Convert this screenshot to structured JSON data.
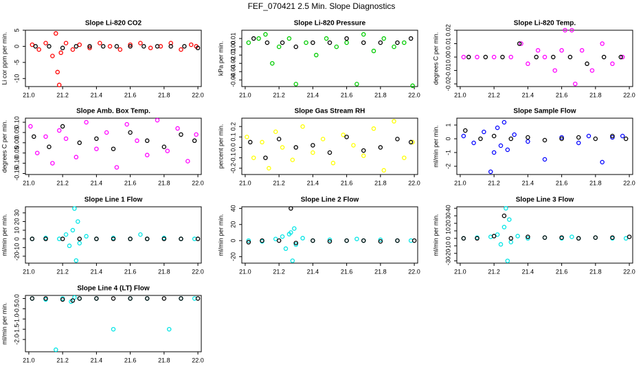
{
  "title": "FEF_070421  2.5 Min. Slope Diagnostics",
  "chart_data": [
    {
      "type": "scatter",
      "title": "Slope Li-820 CO2",
      "ylabel": "Li cor ppm per min.",
      "xlim": [
        20.98,
        22.02
      ],
      "ylim": [
        -12.5,
        5
      ],
      "xticks": [
        {
          "value": 21.0,
          "label": "21.0"
        },
        21.2,
        21.4,
        21.6,
        21.8,
        {
          "value": 22.0,
          "label": "22.0"
        }
      ],
      "yticks": [
        -10,
        -5,
        0,
        5
      ],
      "series": [
        {
          "color": "#ff0000",
          "x": [
            21.02,
            21.06,
            21.1,
            21.14,
            21.16,
            21.17,
            21.18,
            21.19,
            21.22,
            21.26,
            21.3,
            21.36,
            21.42,
            21.48,
            21.54,
            21.6,
            21.66,
            21.72,
            21.78,
            21.84,
            21.9,
            21.96,
            21.99
          ],
          "values": [
            0.5,
            -1,
            1,
            -3,
            4,
            -8,
            -12,
            -2,
            1,
            -1,
            0.5,
            -0.5,
            1,
            0,
            -1,
            0.5,
            1,
            -0.5,
            0,
            1,
            -1,
            0.5,
            0
          ]
        },
        {
          "color": "#000000",
          "x": [
            21.04,
            21.12,
            21.2,
            21.28,
            21.36,
            21.44,
            21.52,
            21.6,
            21.68,
            21.76,
            21.84,
            21.92,
            22.0
          ],
          "values": [
            0,
            0,
            -0.5,
            0,
            0,
            0,
            0,
            0,
            0,
            0,
            0,
            0,
            -0.5
          ]
        }
      ]
    },
    {
      "type": "scatter",
      "title": "Slope Li-820 Pressure",
      "ylabel": "kPa per min.",
      "xlim": [
        20.98,
        22.02
      ],
      "ylim": [
        -0.048,
        0.02
      ],
      "xticks": [
        {
          "value": 21.0,
          "label": "21.0"
        },
        21.2,
        21.4,
        21.6,
        21.8,
        {
          "value": 22.0,
          "label": "22.0"
        }
      ],
      "yticks": [
        {
          "value": -0.04,
          "label": "-0.04"
        },
        {
          "value": -0.03,
          "label": "-0.03"
        },
        {
          "value": -0.02,
          "label": "-0.02"
        },
        {
          "value": -0.01,
          "label": "-0.01"
        },
        {
          "value": 0,
          "label": "0.00"
        },
        {
          "value": 0.01,
          "label": "0.01"
        }
      ],
      "series": [
        {
          "color": "#00cc00",
          "x": [
            21.02,
            21.08,
            21.12,
            21.16,
            21.2,
            21.26,
            21.3,
            21.36,
            21.42,
            21.48,
            21.54,
            21.6,
            21.66,
            21.7,
            21.76,
            21.82,
            21.88,
            21.94,
            21.99
          ],
          "values": [
            0.005,
            0.01,
            0.015,
            -0.02,
            0,
            0.01,
            -0.045,
            0.005,
            -0.01,
            0.01,
            0,
            0.005,
            -0.045,
            0.015,
            -0.005,
            0.01,
            0,
            0.005,
            -0.047
          ]
        },
        {
          "color": "#000000",
          "x": [
            21.05,
            21.13,
            21.22,
            21.3,
            21.4,
            21.5,
            21.6,
            21.7,
            21.8,
            21.9,
            21.98
          ],
          "values": [
            0.01,
            0.005,
            0.005,
            0,
            0.005,
            0.005,
            0.01,
            0.005,
            0.005,
            0.005,
            0.01
          ]
        }
      ]
    },
    {
      "type": "scatter",
      "title": "Slope Li-820 Temp.",
      "ylabel": "degrees C per min.",
      "xlim": [
        20.98,
        22.02
      ],
      "ylim": [
        -0.022,
        0.02
      ],
      "xticks": [
        {
          "value": 21.0,
          "label": "21.0"
        },
        21.2,
        21.4,
        21.6,
        21.8,
        {
          "value": 22.0,
          "label": "22.0"
        }
      ],
      "yticks": [
        {
          "value": -0.02,
          "label": "-0.02"
        },
        {
          "value": -0.01,
          "label": "-0.01"
        },
        {
          "value": 0,
          "label": "0.00"
        },
        {
          "value": 0.01,
          "label": "0.01"
        },
        {
          "value": 0.02,
          "label": "0.02"
        }
      ],
      "series": [
        {
          "color": "#ff00ff",
          "x": [
            21.02,
            21.1,
            21.2,
            21.3,
            21.36,
            21.4,
            21.46,
            21.5,
            21.56,
            21.6,
            21.62,
            21.66,
            21.68,
            21.72,
            21.78,
            21.84,
            21.9,
            21.96
          ],
          "values": [
            0,
            0,
            0,
            0,
            0.01,
            -0.005,
            0.005,
            0,
            -0.01,
            0.005,
            0.02,
            0.02,
            -0.02,
            0.005,
            -0.01,
            0.01,
            -0.005,
            0
          ]
        },
        {
          "color": "#000000",
          "x": [
            21.05,
            21.15,
            21.25,
            21.35,
            21.45,
            21.55,
            21.65,
            21.75,
            21.85,
            21.95
          ],
          "values": [
            0,
            0,
            0,
            0.01,
            0,
            0,
            0,
            -0.005,
            0,
            0
          ]
        }
      ]
    },
    {
      "type": "scatter",
      "title": "Slope Amb. Box Temp.",
      "ylabel": "degrees C per min.",
      "xlim": [
        20.98,
        22.02
      ],
      "ylim": [
        -0.155,
        0.12
      ],
      "xticks": [
        {
          "value": 21.0,
          "label": "21.0"
        },
        21.2,
        21.4,
        21.6,
        21.8,
        {
          "value": 22.0,
          "label": "22.0"
        }
      ],
      "yticks": [
        {
          "value": -0.15,
          "label": "-0.15"
        },
        {
          "value": -0.1,
          "label": "-0.10"
        },
        {
          "value": -0.05,
          "label": "-0.05"
        },
        {
          "value": 0,
          "label": "0.00"
        },
        {
          "value": 0.05,
          "label": "0.05"
        },
        {
          "value": 0.1,
          "label": "0.10"
        }
      ],
      "series": [
        {
          "color": "#ff00ff",
          "x": [
            21.01,
            21.05,
            21.1,
            21.14,
            21.18,
            21.22,
            21.28,
            21.34,
            21.4,
            21.46,
            21.52,
            21.58,
            21.64,
            21.7,
            21.76,
            21.82,
            21.88,
            21.94,
            21.99
          ],
          "values": [
            0.08,
            -0.05,
            0.03,
            -0.1,
            0.06,
            0.02,
            -0.07,
            0.1,
            -0.03,
            0.05,
            -0.12,
            0.09,
            0.01,
            -0.06,
            0.11,
            -0.04,
            0.07,
            -0.09,
            0.04
          ]
        },
        {
          "color": "#000000",
          "x": [
            21.03,
            21.12,
            21.2,
            21.3,
            21.4,
            21.5,
            21.6,
            21.7,
            21.8,
            21.9,
            21.98
          ],
          "values": [
            0.03,
            -0.02,
            0.08,
            0,
            0.02,
            -0.03,
            0.05,
            0.01,
            -0.02,
            0.04,
            0.01
          ]
        }
      ]
    },
    {
      "type": "scatter",
      "title": "Slope Gas Stream RH",
      "ylabel": "percent per min.",
      "xlim": [
        20.98,
        22.02
      ],
      "ylim": [
        -0.26,
        0.28
      ],
      "xticks": [
        {
          "value": 21.0,
          "label": "21.0"
        },
        21.2,
        21.4,
        21.6,
        21.8,
        {
          "value": 22.0,
          "label": "22.0"
        }
      ],
      "yticks": [
        -0.2,
        -0.1,
        {
          "value": 0,
          "label": "0.0"
        },
        0.1,
        0.2
      ],
      "series": [
        {
          "color": "#ffff00",
          "x": [
            21.01,
            21.05,
            21.1,
            21.14,
            21.18,
            21.22,
            21.28,
            21.34,
            21.4,
            21.46,
            21.52,
            21.58,
            21.64,
            21.7,
            21.76,
            21.82,
            21.88,
            21.94,
            21.99
          ],
          "values": [
            0.1,
            -0.1,
            0.05,
            -0.2,
            0.15,
            0,
            -0.12,
            0.2,
            -0.05,
            0.08,
            -0.15,
            0.12,
            0.02,
            -0.08,
            0.18,
            -0.22,
            0.25,
            -0.1,
            0.05
          ]
        },
        {
          "color": "#000000",
          "x": [
            21.03,
            21.12,
            21.2,
            21.3,
            21.4,
            21.5,
            21.6,
            21.7,
            21.8,
            21.9,
            21.98
          ],
          "values": [
            0.05,
            -0.1,
            0.08,
            0,
            0.02,
            -0.05,
            0.1,
            -0.03,
            0,
            0.08,
            0.05
          ]
        }
      ]
    },
    {
      "type": "scatter",
      "title": "Slope Sample Flow",
      "ylabel": "ml/min per min.",
      "xlim": [
        20.98,
        22.02
      ],
      "ylim": [
        -2.6,
        1.5
      ],
      "xticks": [
        {
          "value": 21.0,
          "label": "21.0"
        },
        21.2,
        21.4,
        21.6,
        21.8,
        {
          "value": 22.0,
          "label": "22.0"
        }
      ],
      "yticks": [
        -2,
        -1,
        0,
        1
      ],
      "series": [
        {
          "color": "#0000ff",
          "x": [
            21.02,
            21.08,
            21.14,
            21.18,
            21.2,
            21.22,
            21.24,
            21.26,
            21.28,
            21.32,
            21.4,
            21.5,
            21.6,
            21.7,
            21.76,
            21.84,
            21.9,
            21.96
          ],
          "values": [
            0.2,
            -0.3,
            0.5,
            -2.4,
            -1,
            0.8,
            -0.5,
            1.2,
            -0.8,
            0.3,
            -0.2,
            -1.5,
            0.1,
            -0.3,
            0.2,
            -1.7,
            0.1,
            0.2
          ]
        },
        {
          "color": "#000000",
          "x": [
            21.03,
            21.12,
            21.2,
            21.3,
            21.4,
            21.5,
            21.6,
            21.7,
            21.8,
            21.9,
            21.98
          ],
          "values": [
            0.6,
            0,
            0.2,
            0,
            0.1,
            -0.1,
            0,
            0.1,
            0,
            0.2,
            0
          ]
        }
      ]
    },
    {
      "type": "scatter",
      "title": "Slope Line 1 Flow",
      "ylabel": "ml/min per min.",
      "xlim": [
        20.98,
        22.02
      ],
      "ylim": [
        -28,
        37
      ],
      "xticks": [
        {
          "value": 21.0,
          "label": "21.0"
        },
        21.2,
        21.4,
        21.6,
        21.8,
        {
          "value": 22.0,
          "label": "22.0"
        }
      ],
      "yticks": [
        -20,
        -10,
        0,
        10,
        20,
        30
      ],
      "series": [
        {
          "color": "#00e5e5",
          "x": [
            21.02,
            21.1,
            21.18,
            21.22,
            21.24,
            21.26,
            21.27,
            21.28,
            21.29,
            21.3,
            21.34,
            21.4,
            21.5,
            21.6,
            21.66,
            21.7,
            21.8,
            21.9,
            21.98
          ],
          "values": [
            0,
            1,
            0,
            5,
            -8,
            10,
            35,
            -25,
            20,
            -5,
            3,
            0,
            1,
            0,
            5,
            0,
            1,
            0,
            0
          ]
        },
        {
          "color": "#000000",
          "x": [
            21.02,
            21.1,
            21.2,
            21.3,
            21.4,
            21.5,
            21.6,
            21.7,
            21.8,
            21.9,
            22.0
          ],
          "values": [
            0,
            0,
            0,
            0,
            0,
            0,
            0,
            0,
            0,
            0,
            0
          ]
        }
      ]
    },
    {
      "type": "scatter",
      "title": "Slope Line 2 Flow",
      "ylabel": "ml/min per min.",
      "xlim": [
        20.98,
        22.02
      ],
      "ylim": [
        -28,
        42
      ],
      "xticks": [
        {
          "value": 21.0,
          "label": "21.0"
        },
        21.2,
        21.4,
        21.6,
        21.8,
        {
          "value": 22.0,
          "label": "22.0"
        }
      ],
      "yticks": [
        -20,
        0,
        20,
        40
      ],
      "series": [
        {
          "color": "#00e5e5",
          "x": [
            21.02,
            21.1,
            21.18,
            21.22,
            21.24,
            21.26,
            21.27,
            21.28,
            21.29,
            21.3,
            21.34,
            21.4,
            21.5,
            21.6,
            21.66,
            21.7,
            21.8,
            21.9,
            21.98
          ],
          "values": [
            0,
            -1,
            2,
            5,
            -10,
            8,
            10,
            -25,
            15,
            -5,
            3,
            0,
            1,
            0,
            2,
            0,
            1,
            0,
            0
          ]
        },
        {
          "color": "#000000",
          "x": [
            21.02,
            21.1,
            21.2,
            21.27,
            21.3,
            21.4,
            21.5,
            21.6,
            21.7,
            21.8,
            21.9,
            22.0
          ],
          "values": [
            -2,
            0,
            0,
            40,
            -3,
            0,
            -1,
            0,
            0,
            -1,
            0,
            0
          ]
        }
      ]
    },
    {
      "type": "scatter",
      "title": "Slope Line 3 Flow",
      "ylabel": "ml/min per min.",
      "xlim": [
        20.98,
        22.02
      ],
      "ylim": [
        -33,
        42
      ],
      "xticks": [
        {
          "value": 21.0,
          "label": "21.0"
        },
        21.2,
        21.4,
        21.6,
        21.8,
        {
          "value": 22.0,
          "label": "22.0"
        }
      ],
      "yticks": [
        -30,
        -20,
        -10,
        0,
        10,
        20,
        30,
        40
      ],
      "series": [
        {
          "color": "#00e5e5",
          "x": [
            21.02,
            21.1,
            21.18,
            21.22,
            21.24,
            21.26,
            21.27,
            21.28,
            21.29,
            21.3,
            21.34,
            21.4,
            21.5,
            21.6,
            21.66,
            21.7,
            21.8,
            21.9,
            21.98
          ],
          "values": [
            0,
            1,
            2,
            5,
            -8,
            15,
            40,
            -30,
            25,
            -5,
            3,
            0,
            1,
            0,
            2,
            0,
            1,
            0,
            0
          ]
        },
        {
          "color": "#000000",
          "x": [
            21.02,
            21.1,
            21.2,
            21.26,
            21.3,
            21.4,
            21.5,
            21.6,
            21.7,
            21.8,
            21.9,
            22.0
          ],
          "values": [
            0,
            0,
            3,
            30,
            0,
            2,
            1,
            1,
            0,
            1,
            1,
            2
          ]
        }
      ]
    },
    {
      "type": "scatter",
      "title": "Slope Line 4 (LT) Flow",
      "ylabel": "ml/min per min.",
      "xlim": [
        20.98,
        22.02
      ],
      "ylim": [
        -2.6,
        0.15
      ],
      "xticks": [
        {
          "value": 21.0,
          "label": "21.0"
        },
        21.2,
        21.4,
        21.6,
        21.8,
        {
          "value": 22.0,
          "label": "22.0"
        }
      ],
      "yticks": [
        {
          "value": -2,
          "label": "-2.0"
        },
        -1.5,
        {
          "value": -1,
          "label": "-1.0"
        },
        -0.5,
        {
          "value": 0,
          "label": "0.0"
        }
      ],
      "series": [
        {
          "color": "#00e5e5",
          "x": [
            21.02,
            21.1,
            21.16,
            21.2,
            21.25,
            21.27,
            21.3,
            21.4,
            21.5,
            21.6,
            21.7,
            21.83,
            21.9,
            21.98
          ],
          "values": [
            0,
            -0.05,
            -2.5,
            0,
            -0.15,
            0.05,
            0,
            0,
            -1.5,
            0,
            0,
            -1.5,
            0,
            0
          ]
        },
        {
          "color": "#000000",
          "x": [
            21.02,
            21.1,
            21.2,
            21.26,
            21.3,
            21.4,
            21.5,
            21.6,
            21.7,
            21.8,
            21.9,
            22.0
          ],
          "values": [
            0,
            0,
            -0.05,
            -0.1,
            0,
            0,
            0,
            0,
            0,
            0,
            0,
            0
          ]
        }
      ]
    }
  ]
}
